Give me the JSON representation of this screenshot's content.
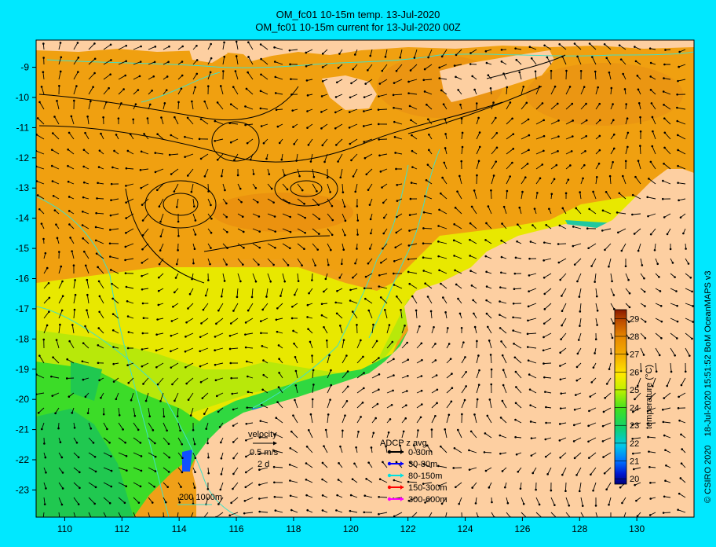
{
  "title": "OM_fc01 10-15m temp. 13-Jul-2020",
  "subtitle": "OM_fc01 10-15m current for 13-Jul-2020 00Z",
  "x_ticks": [
    "110",
    "112",
    "114",
    "116",
    "118",
    "120",
    "122",
    "124",
    "126",
    "128",
    "130"
  ],
  "y_ticks": [
    "-9",
    "-10",
    "-11",
    "-12",
    "-13",
    "-14",
    "-15",
    "-16",
    "-17",
    "-18",
    "-19",
    "-20",
    "-21",
    "-22",
    "-23"
  ],
  "x_range": [
    109,
    132
  ],
  "y_range": [
    -23.9,
    -8.1
  ],
  "colorbar": {
    "label": "temperature (°C)",
    "ticks": [
      "20",
      "21",
      "22",
      "23",
      "24",
      "25",
      "26",
      "27",
      "28",
      "29"
    ],
    "range": [
      19.7,
      29.5
    ]
  },
  "velocity_legend": {
    "title": "velocity",
    "speed": "0.5 m/s",
    "duration": "2 d"
  },
  "adcp_legend": {
    "title": "ADCP z avg",
    "items": [
      {
        "label": "0-30m",
        "color": "#000000"
      },
      {
        "label": "30-80m",
        "color": "#0000ff"
      },
      {
        "label": "80-150m",
        "color": "#00e0e0"
      },
      {
        "label": "150-300m",
        "color": "#ff0000"
      },
      {
        "label": "300-600m",
        "color": "#ff00ff"
      }
    ]
  },
  "isobath_legend": "200  1000m",
  "credit_left": "© CSIRO 2020",
  "credit_right": "18-Jul-2020 15:51:52 BoM OceanMAPS v3",
  "colors": {
    "background": "#00e8ff",
    "land": "#fdcfa1",
    "isobath": "#40e0c8"
  }
}
